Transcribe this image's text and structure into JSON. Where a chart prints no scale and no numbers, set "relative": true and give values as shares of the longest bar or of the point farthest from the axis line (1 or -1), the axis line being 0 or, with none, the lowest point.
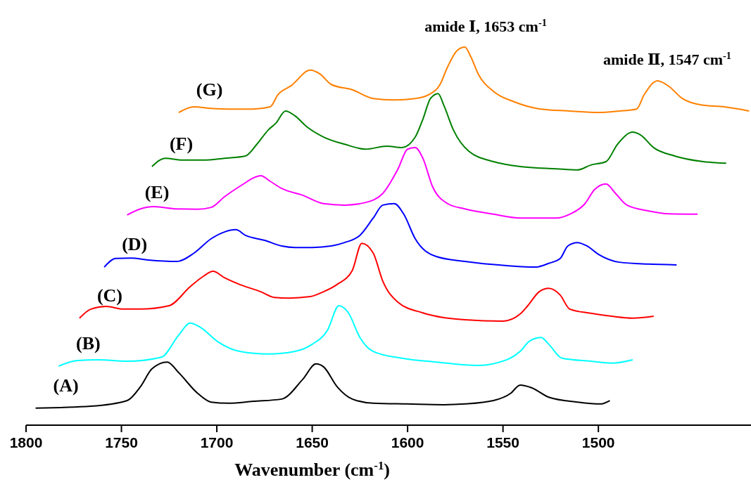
{
  "chart_data": {
    "type": "line",
    "relative": true,
    "xlabel": "Wavenumber (cm$^{-1}$)",
    "xlim": [
      1800,
      1420
    ],
    "xticks": [
      1800,
      1750,
      1700,
      1650,
      1600,
      1550,
      1500
    ],
    "marker": "none",
    "line_style": "solid",
    "grid": false,
    "annotations": [
      "amide Ⅰ, 1653 cm$^{-1}$",
      "amide Ⅱ, 1547 cm$^{-1}$"
    ],
    "series": [
      {
        "name": "(A)",
        "color": "#000000",
        "x": [
          1795,
          1766,
          1747,
          1740,
          1734,
          1726,
          1720,
          1710,
          1703,
          1694,
          1681,
          1666,
          1655,
          1648,
          1644,
          1637,
          1629,
          1618,
          1600,
          1581,
          1570,
          1555,
          1546,
          1541,
          1535,
          1526,
          1511,
          1499,
          1494
        ],
        "values": [
          0.045,
          0.05,
          0.065,
          0.102,
          0.149,
          0.167,
          0.139,
          0.084,
          0.061,
          0.058,
          0.063,
          0.069,
          0.121,
          0.162,
          0.154,
          0.102,
          0.069,
          0.058,
          0.056,
          0.054,
          0.056,
          0.065,
          0.084,
          0.106,
          0.099,
          0.074,
          0.061,
          0.056,
          0.065
        ]
      },
      {
        "name": "(B)",
        "color": "#00ffff",
        "x": [
          1783,
          1773,
          1762,
          1747,
          1729,
          1720,
          1714,
          1709,
          1699,
          1688,
          1673,
          1659,
          1650,
          1642,
          1636,
          1631,
          1625,
          1618,
          1603,
          1585,
          1563,
          1548,
          1541,
          1536,
          1530,
          1526,
          1519,
          1504,
          1493,
          1482
        ],
        "values": [
          0.156,
          0.171,
          0.173,
          0.169,
          0.18,
          0.238,
          0.27,
          0.26,
          0.219,
          0.195,
          0.188,
          0.195,
          0.214,
          0.251,
          0.316,
          0.297,
          0.232,
          0.195,
          0.177,
          0.167,
          0.158,
          0.173,
          0.195,
          0.223,
          0.232,
          0.214,
          0.177,
          0.169,
          0.164,
          0.173
        ]
      },
      {
        "name": "(C)",
        "color": "#ff0000",
        "x": [
          1772,
          1766,
          1758,
          1749,
          1740,
          1725,
          1714,
          1707,
          1702,
          1696,
          1688,
          1677,
          1670,
          1662,
          1651,
          1644,
          1637,
          1629,
          1624,
          1618,
          1613,
          1605,
          1592,
          1570,
          1550,
          1541,
          1537,
          1531,
          1526,
          1520,
          1515,
          1504,
          1493,
          1482,
          1471
        ],
        "values": [
          0.283,
          0.307,
          0.314,
          0.307,
          0.307,
          0.316,
          0.366,
          0.394,
          0.407,
          0.39,
          0.372,
          0.353,
          0.338,
          0.336,
          0.34,
          0.353,
          0.372,
          0.409,
          0.481,
          0.455,
          0.381,
          0.325,
          0.297,
          0.279,
          0.275,
          0.294,
          0.316,
          0.353,
          0.362,
          0.344,
          0.307,
          0.296,
          0.288,
          0.283,
          0.288
        ]
      },
      {
        "name": "(D)",
        "color": "#0000ff",
        "x": [
          1759,
          1753,
          1745,
          1736,
          1721,
          1712,
          1703,
          1696,
          1690,
          1685,
          1675,
          1666,
          1659,
          1650,
          1640,
          1633,
          1625,
          1618,
          1613,
          1607,
          1602,
          1596,
          1585,
          1570,
          1548,
          1533,
          1526,
          1520,
          1516,
          1511,
          1506,
          1500,
          1489,
          1474,
          1459
        ],
        "values": [
          0.418,
          0.441,
          0.442,
          0.437,
          0.433,
          0.455,
          0.493,
          0.511,
          0.517,
          0.502,
          0.489,
          0.474,
          0.47,
          0.47,
          0.474,
          0.483,
          0.502,
          0.548,
          0.582,
          0.586,
          0.558,
          0.493,
          0.446,
          0.433,
          0.422,
          0.418,
          0.428,
          0.441,
          0.474,
          0.483,
          0.474,
          0.452,
          0.431,
          0.426,
          0.424
        ]
      },
      {
        "name": "(E)",
        "color": "#ff00ff",
        "x": [
          1747,
          1740,
          1733,
          1721,
          1710,
          1703,
          1696,
          1686,
          1680,
          1677,
          1672,
          1666,
          1655,
          1644,
          1633,
          1622,
          1613,
          1605,
          1600,
          1596,
          1592,
          1587,
          1579,
          1570,
          1555,
          1541,
          1522,
          1515,
          1507,
          1502,
          1496,
          1491,
          1485,
          1474,
          1463,
          1448
        ],
        "values": [
          0.556,
          0.572,
          0.578,
          0.572,
          0.571,
          0.576,
          0.604,
          0.638,
          0.656,
          0.66,
          0.645,
          0.626,
          0.608,
          0.586,
          0.582,
          0.589,
          0.613,
          0.678,
          0.73,
          0.734,
          0.706,
          0.632,
          0.586,
          0.572,
          0.558,
          0.548,
          0.548,
          0.558,
          0.586,
          0.623,
          0.638,
          0.613,
          0.582,
          0.567,
          0.559,
          0.558
        ]
      },
      {
        "name": "(F)",
        "color": "#008000",
        "x": [
          1734,
          1727,
          1718,
          1707,
          1696,
          1685,
          1679,
          1673,
          1669,
          1664,
          1659,
          1653,
          1644,
          1633,
          1622,
          1611,
          1603,
          1596,
          1592,
          1588,
          1584,
          1581,
          1576,
          1568,
          1555,
          1541,
          1522,
          1511,
          1504,
          1496,
          1490,
          1482,
          1478,
          1471,
          1460,
          1445,
          1433
        ],
        "values": [
          0.684,
          0.706,
          0.701,
          0.701,
          0.706,
          0.712,
          0.743,
          0.781,
          0.799,
          0.831,
          0.818,
          0.79,
          0.762,
          0.743,
          0.73,
          0.738,
          0.734,
          0.762,
          0.809,
          0.864,
          0.877,
          0.846,
          0.781,
          0.725,
          0.697,
          0.684,
          0.678,
          0.675,
          0.688,
          0.697,
          0.743,
          0.775,
          0.768,
          0.734,
          0.712,
          0.697,
          0.693
        ]
      },
      {
        "name": "(G)",
        "color": "#ff8000",
        "x": [
          1720,
          1712,
          1703,
          1692,
          1681,
          1672,
          1668,
          1661,
          1651,
          1646,
          1640,
          1629,
          1618,
          1607,
          1596,
          1589,
          1583,
          1579,
          1574,
          1570,
          1567,
          1563,
          1555,
          1544,
          1530,
          1515,
          1500,
          1489,
          1480,
          1476,
          1469,
          1463,
          1456,
          1445,
          1434,
          1421
        ],
        "values": [
          0.827,
          0.842,
          0.838,
          0.836,
          0.836,
          0.842,
          0.874,
          0.898,
          0.939,
          0.929,
          0.901,
          0.887,
          0.864,
          0.86,
          0.864,
          0.874,
          0.901,
          0.948,
          0.991,
          1,
          0.976,
          0.929,
          0.883,
          0.855,
          0.836,
          0.831,
          0.827,
          0.831,
          0.836,
          0.874,
          0.911,
          0.896,
          0.864,
          0.846,
          0.842,
          0.831
        ]
      }
    ]
  }
}
